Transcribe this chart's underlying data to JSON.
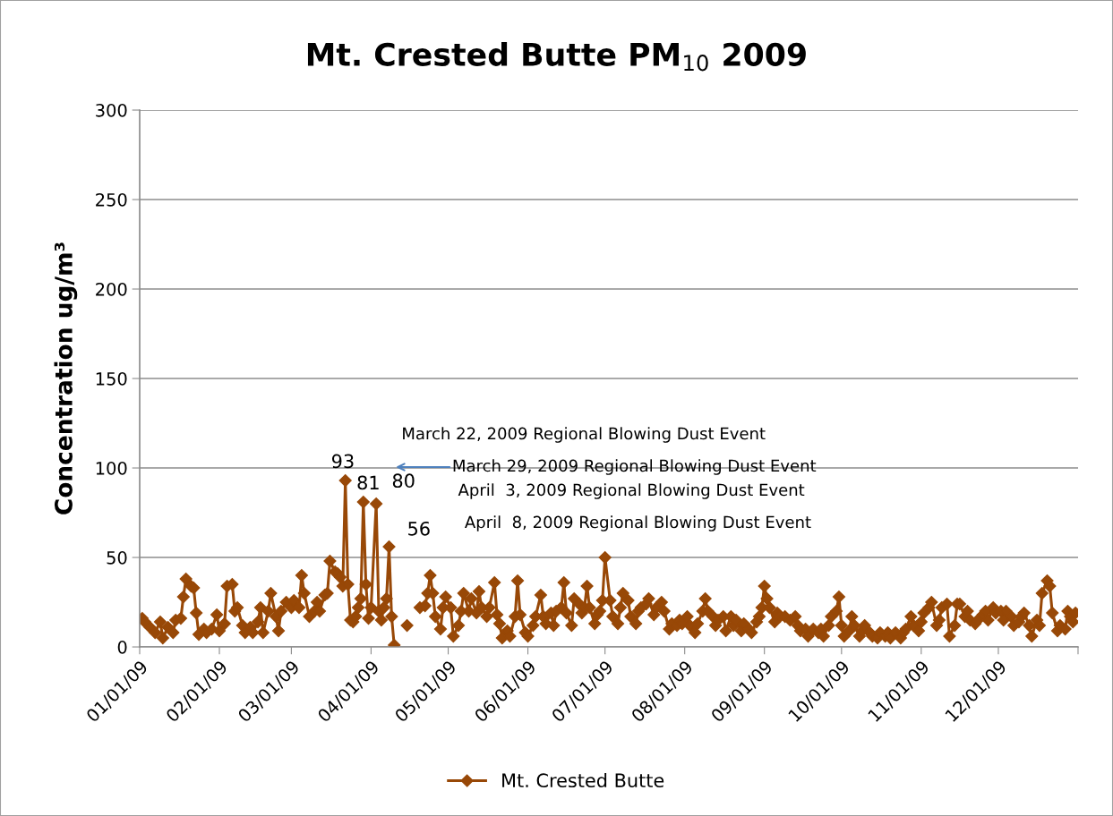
{
  "chart_data": {
    "type": "line",
    "title": "Mt. Crested Butte PM$_{10}$ 2009",
    "ylabel": "Concentration ug/m³",
    "annotations": [
      {
        "text": "93",
        "x": "2009-03-22",
        "y": 93
      },
      {
        "text": "81",
        "x": "2009-03-29",
        "y": 81
      },
      {
        "text": "80",
        "x": "2009-04-03",
        "y": 80
      },
      {
        "text": "56",
        "x": "2009-04-08",
        "y": 56
      },
      "March 22, 2009 Regional Blowing Dust Event",
      "March 29, 2009 Regional Blowing Dust Event",
      "April  3, 2009 Regional Blowing Dust Event",
      "April  8, 2009 Regional Blowing Dust Event"
    ],
    "x": [
      "2009-01-02",
      "2009-01-03",
      "2009-01-05",
      "2009-01-07",
      "2009-01-09",
      "2009-01-10",
      "2009-01-12",
      "2009-01-14",
      "2009-01-15",
      "2009-01-17",
      "2009-01-18",
      "2009-01-19",
      "2009-01-21",
      "2009-01-22",
      "2009-01-23",
      "2009-01-24",
      "2009-01-26",
      "2009-01-27",
      "2009-01-29",
      "2009-01-31",
      "2009-02-01",
      "2009-02-03",
      "2009-02-04",
      "2009-02-06",
      "2009-02-07",
      "2009-02-08",
      "2009-02-10",
      "2009-02-11",
      "2009-02-13",
      "2009-02-14",
      "2009-02-16",
      "2009-02-17",
      "2009-02-18",
      "2009-02-20",
      "2009-02-21",
      "2009-02-23",
      "2009-02-24",
      "2009-02-25",
      "2009-02-27",
      "2009-03-01",
      "2009-03-02",
      "2009-03-04",
      "2009-03-05",
      "2009-03-06",
      "2009-03-08",
      "2009-03-10",
      "2009-03-11",
      "2009-03-12",
      "2009-03-14",
      "2009-03-15",
      "2009-03-16",
      "2009-03-18",
      "2009-03-19",
      "2009-03-20",
      "2009-03-21",
      "2009-03-22",
      "2009-03-23",
      "2009-03-24",
      "2009-03-25",
      "2009-03-26",
      "2009-03-27",
      "2009-03-28",
      "2009-03-29",
      "2009-03-30",
      "2009-03-31",
      "2009-04-01",
      "2009-04-03",
      "2009-04-04",
      "2009-04-05",
      "2009-04-06",
      "2009-04-07",
      "2009-04-08",
      "2009-04-09",
      "2009-04-10",
      "2009-04-12",
      "2009-04-15",
      "2009-04-17",
      "2009-04-20",
      "2009-04-22",
      "2009-04-23",
      "2009-04-24",
      "2009-04-25",
      "2009-04-26",
      "2009-04-28",
      "2009-04-29",
      "2009-04-30",
      "2009-05-02",
      "2009-05-03",
      "2009-05-05",
      "2009-05-06",
      "2009-05-07",
      "2009-05-09",
      "2009-05-10",
      "2009-05-12",
      "2009-05-13",
      "2009-05-14",
      "2009-05-16",
      "2009-05-17",
      "2009-05-19",
      "2009-05-20",
      "2009-05-21",
      "2009-05-22",
      "2009-05-24",
      "2009-05-25",
      "2009-05-27",
      "2009-05-28",
      "2009-05-29",
      "2009-05-31",
      "2009-06-01",
      "2009-06-03",
      "2009-06-04",
      "2009-06-06",
      "2009-06-07",
      "2009-06-08",
      "2009-06-10",
      "2009-06-11",
      "2009-06-12",
      "2009-06-14",
      "2009-06-15",
      "2009-06-16",
      "2009-06-18",
      "2009-06-19",
      "2009-06-21",
      "2009-06-22",
      "2009-06-23",
      "2009-06-24",
      "2009-06-25",
      "2009-06-27",
      "2009-06-28",
      "2009-06-29",
      "2009-06-30",
      "2009-07-01",
      "2009-07-03",
      "2009-07-04",
      "2009-07-06",
      "2009-07-07",
      "2009-07-08",
      "2009-07-10",
      "2009-07-11",
      "2009-07-13",
      "2009-07-14",
      "2009-07-15",
      "2009-07-17",
      "2009-07-18",
      "2009-07-20",
      "2009-07-21",
      "2009-07-23",
      "2009-07-24",
      "2009-07-26",
      "2009-07-27",
      "2009-07-29",
      "2009-07-30",
      "2009-07-31",
      "2009-08-02",
      "2009-08-03",
      "2009-08-05",
      "2009-08-06",
      "2009-08-08",
      "2009-08-09",
      "2009-08-10",
      "2009-08-12",
      "2009-08-13",
      "2009-08-14",
      "2009-08-16",
      "2009-08-17",
      "2009-08-19",
      "2009-08-20",
      "2009-08-21",
      "2009-08-23",
      "2009-08-24",
      "2009-08-26",
      "2009-08-27",
      "2009-08-29",
      "2009-08-30",
      "2009-08-31",
      "2009-09-01",
      "2009-09-02",
      "2009-09-03",
      "2009-09-05",
      "2009-09-06",
      "2009-09-07",
      "2009-09-09",
      "2009-09-11",
      "2009-09-13",
      "2009-09-14",
      "2009-09-15",
      "2009-09-17",
      "2009-09-18",
      "2009-09-20",
      "2009-09-22",
      "2009-09-23",
      "2009-09-24",
      "2009-09-26",
      "2009-09-27",
      "2009-09-29",
      "2009-09-30",
      "2009-10-01",
      "2009-10-02",
      "2009-10-04",
      "2009-10-05",
      "2009-10-06",
      "2009-10-08",
      "2009-10-09",
      "2009-10-10",
      "2009-10-12",
      "2009-10-13",
      "2009-10-15",
      "2009-10-16",
      "2009-10-18",
      "2009-10-19",
      "2009-10-20",
      "2009-10-22",
      "2009-10-24",
      "2009-10-25",
      "2009-10-26",
      "2009-10-28",
      "2009-10-29",
      "2009-10-31",
      "2009-11-01",
      "2009-11-02",
      "2009-11-04",
      "2009-11-05",
      "2009-11-07",
      "2009-11-08",
      "2009-11-09",
      "2009-11-11",
      "2009-11-12",
      "2009-11-14",
      "2009-11-15",
      "2009-11-16",
      "2009-11-18",
      "2009-11-19",
      "2009-11-20",
      "2009-11-22",
      "2009-11-23",
      "2009-11-25",
      "2009-11-26",
      "2009-11-27",
      "2009-11-29",
      "2009-11-30",
      "2009-12-02",
      "2009-12-03",
      "2009-12-04",
      "2009-12-06",
      "2009-12-07",
      "2009-12-09",
      "2009-12-10",
      "2009-12-11",
      "2009-12-13",
      "2009-12-14",
      "2009-12-16",
      "2009-12-17",
      "2009-12-18",
      "2009-12-20",
      "2009-12-21",
      "2009-12-22",
      "2009-12-24",
      "2009-12-25",
      "2009-12-27",
      "2009-12-28",
      "2009-12-29",
      "2009-12-30",
      "2009-12-31"
    ],
    "series": [
      {
        "name": "Mt. Crested Butte",
        "color": "#984807",
        "values": [
          16,
          14,
          11,
          8,
          14,
          5,
          11,
          8,
          15,
          16,
          28,
          38,
          34,
          33,
          19,
          7,
          10,
          8,
          10,
          18,
          9,
          13,
          34,
          35,
          20,
          22,
          12,
          8,
          11,
          8,
          14,
          22,
          8,
          20,
          30,
          17,
          9,
          20,
          25,
          22,
          26,
          22,
          40,
          30,
          17,
          20,
          25,
          20,
          29,
          30,
          48,
          42,
          41,
          39,
          34,
          93,
          35,
          15,
          14,
          17,
          22,
          27,
          81,
          35,
          16,
          22,
          80,
          20,
          15,
          22,
          27,
          56,
          17,
          1,
          null,
          12,
          null,
          22,
          23,
          30,
          40,
          30,
          17,
          10,
          22,
          28,
          22,
          6,
          12,
          20,
          30,
          20,
          27,
          19,
          31,
          22,
          17,
          22,
          36,
          18,
          13,
          5,
          9,
          6,
          17,
          37,
          18,
          8,
          6,
          12,
          17,
          29,
          17,
          13,
          19,
          12,
          20,
          22,
          36,
          19,
          12,
          27,
          24,
          19,
          22,
          34,
          22,
          13,
          18,
          20,
          26,
          50,
          26,
          17,
          13,
          22,
          30,
          26,
          17,
          13,
          20,
          22,
          24,
          27,
          18,
          22,
          25,
          20,
          10,
          13,
          12,
          15,
          13,
          17,
          12,
          8,
          13,
          20,
          27,
          20,
          17,
          12,
          15,
          17,
          9,
          17,
          12,
          15,
          9,
          13,
          10,
          8,
          14,
          17,
          22,
          34,
          27,
          22,
          14,
          19,
          17,
          17,
          15,
          17,
          12,
          9,
          10,
          6,
          10,
          8,
          10,
          6,
          12,
          17,
          20,
          28,
          12,
          6,
          9,
          17,
          12,
          6,
          9,
          12,
          8,
          6,
          5,
          8,
          6,
          8,
          5,
          8,
          5,
          8,
          10,
          17,
          12,
          9,
          14,
          19,
          22,
          25,
          12,
          15,
          22,
          24,
          6,
          12,
          24,
          24,
          17,
          20,
          15,
          13,
          15,
          18,
          20,
          15,
          22,
          19,
          20,
          15,
          20,
          17,
          12,
          14,
          17,
          19,
          12,
          6,
          15,
          12,
          30,
          37,
          34,
          19,
          9,
          12,
          10,
          20,
          17,
          14,
          19
        ]
      }
    ],
    "xlim": [
      "2009-01-01",
      "2010-01-01"
    ],
    "xticks": [
      {
        "value": "2009-01-01",
        "label": "01/01/09"
      },
      {
        "value": "2009-02-01",
        "label": "02/01/09"
      },
      {
        "value": "2009-03-01",
        "label": "03/01/09"
      },
      {
        "value": "2009-04-01",
        "label": "04/01/09"
      },
      {
        "value": "2009-05-01",
        "label": "05/01/09"
      },
      {
        "value": "2009-06-01",
        "label": "06/01/09"
      },
      {
        "value": "2009-07-01",
        "label": "07/01/09"
      },
      {
        "value": "2009-08-01",
        "label": "08/01/09"
      },
      {
        "value": "2009-09-01",
        "label": "09/01/09"
      },
      {
        "value": "2009-10-01",
        "label": "10/01/09"
      },
      {
        "value": "2009-11-01",
        "label": "11/01/09"
      },
      {
        "value": "2009-12-01",
        "label": "12/01/09"
      },
      {
        "value": "2010-01-01",
        "label": null
      }
    ],
    "ylim": [
      0,
      300
    ],
    "yticks": [
      0,
      50,
      100,
      150,
      200,
      250,
      300
    ],
    "grid": "y",
    "legend": "bottom",
    "marker": "diamond",
    "line_style": "solid"
  }
}
